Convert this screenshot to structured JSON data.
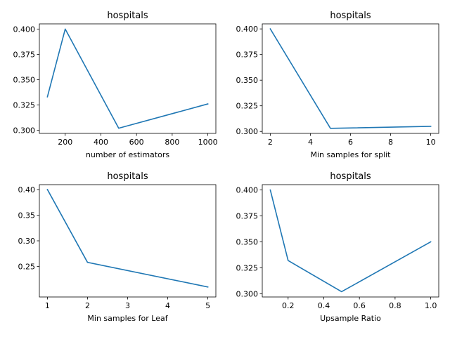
{
  "figure": {
    "background": "#ffffff",
    "line_color": "#1f77b4"
  },
  "chart_data": [
    {
      "type": "line",
      "title": "hospitals",
      "xlabel": "number of estimators",
      "ylabel": "",
      "x": [
        100,
        200,
        500,
        1000
      ],
      "series": [
        {
          "values": [
            0.333,
            0.4,
            0.302,
            0.326
          ]
        }
      ],
      "xlim": [
        55,
        1045
      ],
      "ylim": [
        0.2969,
        0.4051
      ],
      "xticks": [
        200,
        400,
        600,
        800,
        1000
      ],
      "xtick_labels": [
        "200",
        "400",
        "600",
        "800",
        "1000"
      ],
      "yticks": [
        0.3,
        0.325,
        0.35,
        0.375,
        0.4
      ],
      "ytick_labels": [
        "0.300",
        "0.325",
        "0.350",
        "0.375",
        "0.400"
      ],
      "grid": false
    },
    {
      "type": "line",
      "title": "hospitals",
      "xlabel": "Min samples for split",
      "ylabel": "",
      "x": [
        2,
        5,
        10
      ],
      "series": [
        {
          "values": [
            0.4,
            0.303,
            0.305
          ]
        }
      ],
      "xlim": [
        1.6,
        10.4
      ],
      "ylim": [
        0.2981,
        0.4049
      ],
      "xticks": [
        2,
        4,
        6,
        8,
        10
      ],
      "xtick_labels": [
        "2",
        "4",
        "6",
        "8",
        "10"
      ],
      "yticks": [
        0.3,
        0.325,
        0.35,
        0.375,
        0.4
      ],
      "ytick_labels": [
        "0.300",
        "0.325",
        "0.350",
        "0.375",
        "0.400"
      ],
      "grid": false
    },
    {
      "type": "line",
      "title": "hospitals",
      "xlabel": "Min samples for Leaf",
      "ylabel": "",
      "x": [
        1,
        2,
        5
      ],
      "series": [
        {
          "values": [
            0.4,
            0.258,
            0.21
          ]
        }
      ],
      "xlim": [
        0.8,
        5.2
      ],
      "ylim": [
        0.1905,
        0.4095
      ],
      "xticks": [
        1,
        2,
        3,
        4,
        5
      ],
      "xtick_labels": [
        "1",
        "2",
        "3",
        "4",
        "5"
      ],
      "yticks": [
        0.25,
        0.3,
        0.35,
        0.4
      ],
      "ytick_labels": [
        "0.25",
        "0.30",
        "0.35",
        "0.40"
      ],
      "grid": false
    },
    {
      "type": "line",
      "title": "hospitals",
      "xlabel": "Upsample Ratio",
      "ylabel": "",
      "x": [
        0.1,
        0.2,
        0.5,
        1.0
      ],
      "series": [
        {
          "values": [
            0.4,
            0.332,
            0.302,
            0.35
          ]
        }
      ],
      "xlim": [
        0.055,
        1.045
      ],
      "ylim": [
        0.2969,
        0.4051
      ],
      "xticks": [
        0.2,
        0.4,
        0.6,
        0.8,
        1.0
      ],
      "xtick_labels": [
        "0.2",
        "0.4",
        "0.6",
        "0.8",
        "1.0"
      ],
      "yticks": [
        0.3,
        0.325,
        0.35,
        0.375,
        0.4
      ],
      "ytick_labels": [
        "0.300",
        "0.325",
        "0.350",
        "0.375",
        "0.400"
      ],
      "grid": false
    }
  ]
}
